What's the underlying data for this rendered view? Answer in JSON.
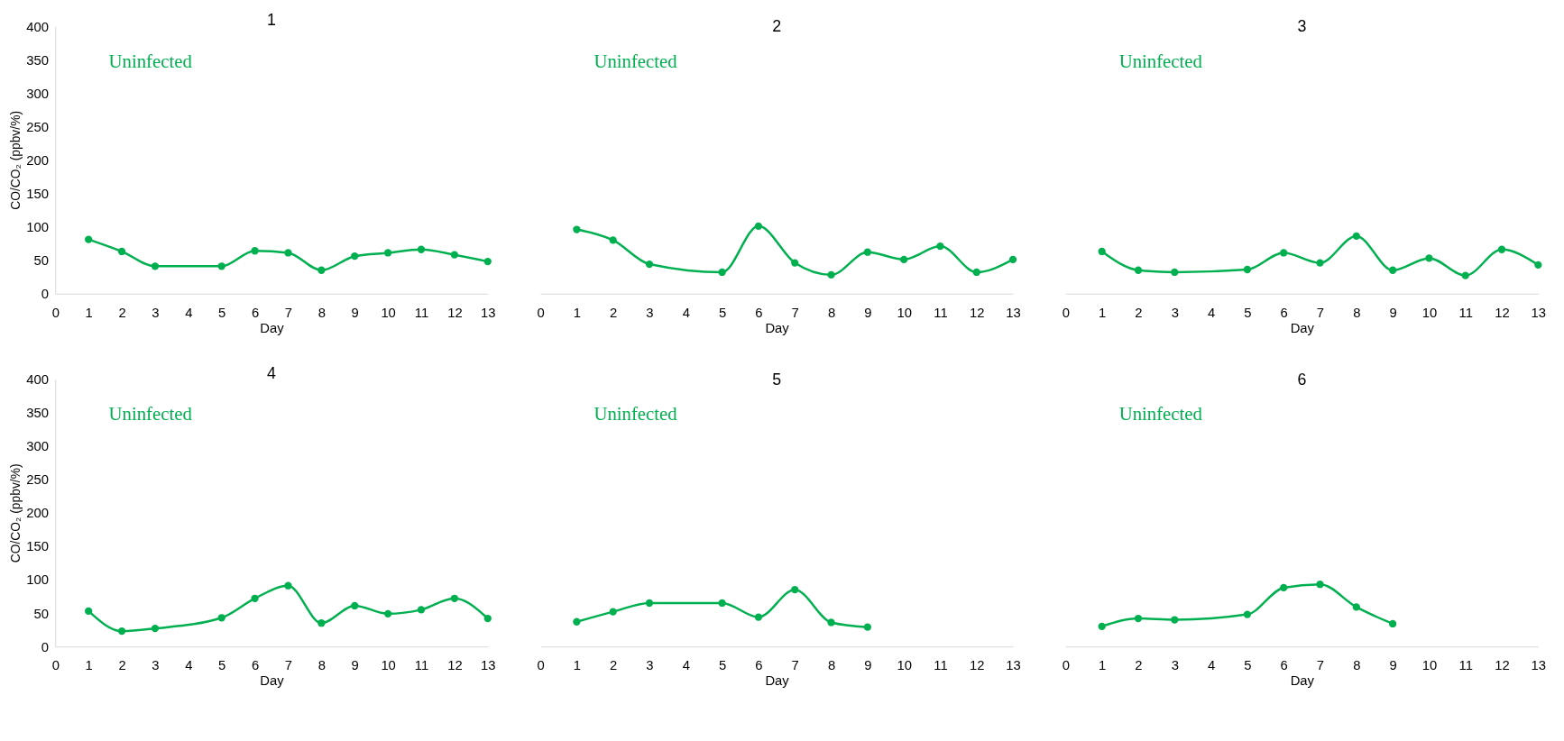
{
  "chart_data": [
    {
      "type": "line",
      "title": "1",
      "xlabel": "Day",
      "ylabel": "CO/CO₂ (ppbv/%)",
      "annotations": [
        "Uninfected"
      ],
      "x": [
        1,
        2,
        3,
        5,
        6,
        7,
        8,
        9,
        10,
        11,
        12,
        13
      ],
      "values": [
        81,
        63,
        41,
        41,
        64,
        61,
        35,
        56,
        61,
        66,
        58,
        48
      ],
      "color": "#00b050",
      "marker": "circle",
      "xlim": [
        0,
        13
      ],
      "xticks": [
        0,
        1,
        2,
        3,
        4,
        5,
        6,
        7,
        8,
        9,
        10,
        11,
        12,
        13
      ],
      "ylim": [
        0,
        400
      ],
      "yticks": [
        0,
        50,
        100,
        150,
        200,
        250,
        300,
        350,
        400
      ]
    },
    {
      "type": "line",
      "title": "2",
      "xlabel": "Day",
      "annotations": [
        "Uninfected"
      ],
      "x": [
        1,
        2,
        3,
        5,
        6,
        7,
        8,
        9,
        10,
        11,
        12,
        13
      ],
      "values": [
        96,
        80,
        44,
        32,
        101,
        46,
        28,
        62,
        51,
        71,
        32,
        51
      ],
      "color": "#00b050",
      "marker": "circle",
      "xlim": [
        0,
        13
      ],
      "xticks": [
        0,
        1,
        2,
        3,
        4,
        5,
        6,
        7,
        8,
        9,
        10,
        11,
        12,
        13
      ],
      "ylim": [
        0,
        400
      ],
      "tick_labels": "x"
    },
    {
      "type": "line",
      "title": "3",
      "xlabel": "Day",
      "annotations": [
        "Uninfected"
      ],
      "x": [
        1,
        2,
        3,
        5,
        6,
        7,
        8,
        9,
        10,
        11,
        12,
        13
      ],
      "values": [
        63,
        35,
        32,
        36,
        61,
        46,
        86,
        35,
        53,
        27,
        66,
        43
      ],
      "color": "#00b050",
      "marker": "circle",
      "xlim": [
        0,
        13
      ],
      "xticks": [
        0,
        1,
        2,
        3,
        4,
        5,
        6,
        7,
        8,
        9,
        10,
        11,
        12,
        13
      ],
      "ylim": [
        0,
        400
      ],
      "tick_labels": "x"
    },
    {
      "type": "line",
      "title": "4",
      "xlabel": "Day",
      "ylabel": "CO/CO₂ (ppbv/%)",
      "annotations": [
        "Uninfected"
      ],
      "x": [
        1,
        2,
        3,
        5,
        6,
        7,
        8,
        9,
        10,
        11,
        12,
        13
      ],
      "values": [
        53,
        23,
        27,
        43,
        72,
        91,
        35,
        61,
        49,
        55,
        72,
        42
      ],
      "color": "#00b050",
      "marker": "circle",
      "xlim": [
        0,
        13
      ],
      "xticks": [
        0,
        1,
        2,
        3,
        4,
        5,
        6,
        7,
        8,
        9,
        10,
        11,
        12,
        13
      ],
      "ylim": [
        0,
        400
      ],
      "yticks": [
        0,
        50,
        100,
        150,
        200,
        250,
        300,
        350,
        400
      ]
    },
    {
      "type": "line",
      "title": "5",
      "xlabel": "Day",
      "annotations": [
        "Uninfected"
      ],
      "x": [
        1,
        2,
        3,
        5,
        6,
        7,
        8,
        9
      ],
      "values": [
        37,
        52,
        65,
        65,
        44,
        85,
        36,
        29
      ],
      "color": "#00b050",
      "marker": "circle",
      "xlim": [
        0,
        13
      ],
      "xticks": [
        0,
        1,
        2,
        3,
        4,
        5,
        6,
        7,
        8,
        9,
        10,
        11,
        12,
        13
      ],
      "ylim": [
        0,
        400
      ],
      "tick_labels": "x"
    },
    {
      "type": "line",
      "title": "6",
      "xlabel": "Day",
      "annotations": [
        "Uninfected"
      ],
      "x": [
        1,
        2,
        3,
        5,
        6,
        7,
        8,
        9
      ],
      "values": [
        30,
        42,
        40,
        48,
        88,
        93,
        59,
        34
      ],
      "color": "#00b050",
      "marker": "circle",
      "xlim": [
        0,
        13
      ],
      "xticks": [
        0,
        1,
        2,
        3,
        4,
        5,
        6,
        7,
        8,
        9,
        10,
        11,
        12,
        13
      ],
      "ylim": [
        0,
        400
      ],
      "tick_labels": "x"
    }
  ]
}
